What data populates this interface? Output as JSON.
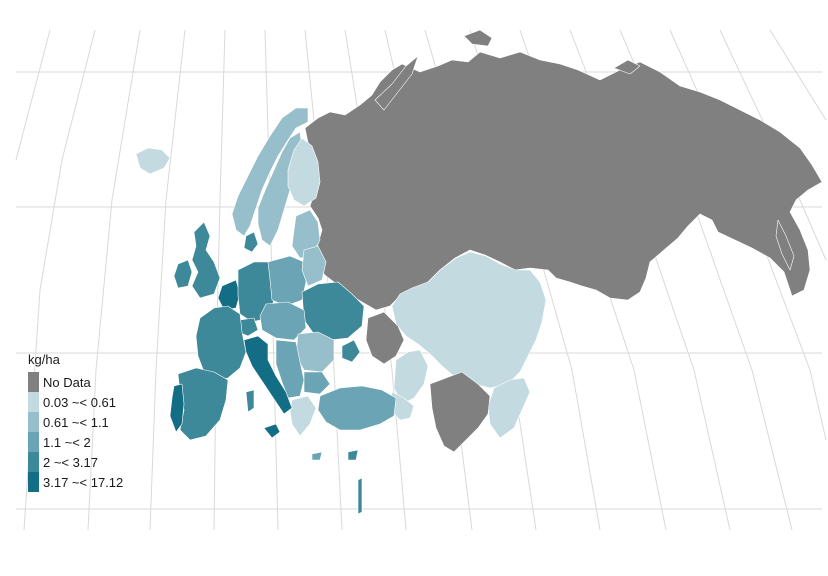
{
  "legend": {
    "title": "kg/ha",
    "items": [
      {
        "label": "No Data",
        "color": "#808080"
      },
      {
        "label": "0.03 ~< 0.61",
        "color": "#c3dae0"
      },
      {
        "label": "0.61 ~< 1.1",
        "color": "#97bfcb"
      },
      {
        "label": "1.1 ~< 2",
        "color": "#6aa4b5"
      },
      {
        "label": "2 ~< 3.17",
        "color": "#3d8899"
      },
      {
        "label": "3.17 ~< 17.12",
        "color": "#136e85"
      }
    ]
  },
  "map": {
    "background": "#ffffff",
    "graticule_color": "#d9d9d9"
  }
}
